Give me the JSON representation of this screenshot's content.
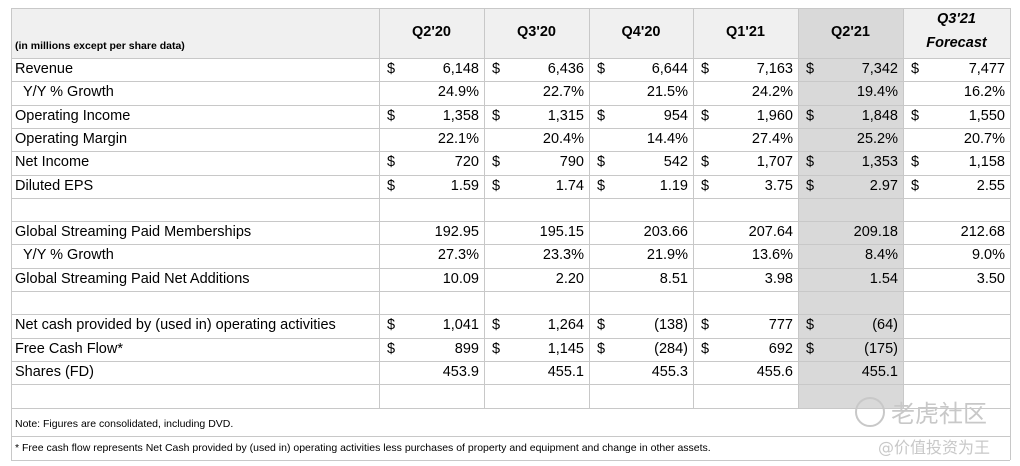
{
  "header": {
    "unit_note": "(in millions except per share data)",
    "columns": [
      "Q2'20",
      "Q3'20",
      "Q4'20",
      "Q1'21",
      "Q2'21"
    ],
    "forecast_col": [
      "Q3'21",
      "Forecast"
    ]
  },
  "rows": [
    {
      "label": "Revenue",
      "values": [
        "6,148",
        "6,436",
        "6,644",
        "7,163",
        "7,342",
        "7,477"
      ],
      "dollars": [
        true,
        true,
        true,
        true,
        true,
        true
      ]
    },
    {
      "label": "Y/Y % Growth",
      "indent": true,
      "values": [
        "24.9%",
        "22.7%",
        "21.5%",
        "24.2%",
        "19.4%",
        "16.2%"
      ],
      "dollars": [
        false,
        false,
        false,
        false,
        false,
        false
      ]
    },
    {
      "label": "Operating Income",
      "values": [
        "1,358",
        "1,315",
        "954",
        "1,960",
        "1,848",
        "1,550"
      ],
      "dollars": [
        true,
        true,
        true,
        true,
        true,
        true
      ]
    },
    {
      "label": "Operating Margin",
      "values": [
        "22.1%",
        "20.4%",
        "14.4%",
        "27.4%",
        "25.2%",
        "20.7%"
      ],
      "dollars": [
        false,
        false,
        false,
        false,
        false,
        false
      ]
    },
    {
      "label": "Net Income",
      "values": [
        "720",
        "790",
        "542",
        "1,707",
        "1,353",
        "1,158"
      ],
      "dollars": [
        true,
        true,
        true,
        true,
        true,
        true
      ]
    },
    {
      "label": "Diluted EPS",
      "values": [
        "1.59",
        "1.74",
        "1.19",
        "3.75",
        "2.97",
        "2.55"
      ],
      "dollars": [
        true,
        true,
        true,
        true,
        true,
        true
      ]
    },
    {
      "label": "",
      "values": [
        "",
        "",
        "",
        "",
        "",
        ""
      ],
      "dollars": [
        false,
        false,
        false,
        false,
        false,
        false
      ]
    },
    {
      "label": "Global Streaming Paid Memberships",
      "values": [
        "192.95",
        "195.15",
        "203.66",
        "207.64",
        "209.18",
        "212.68"
      ],
      "dollars": [
        false,
        false,
        false,
        false,
        false,
        false
      ]
    },
    {
      "label": "Y/Y % Growth",
      "indent": true,
      "values": [
        "27.3%",
        "23.3%",
        "21.9%",
        "13.6%",
        "8.4%",
        "9.0%"
      ],
      "dollars": [
        false,
        false,
        false,
        false,
        false,
        false
      ]
    },
    {
      "label": "Global Streaming Paid Net Additions",
      "values": [
        "10.09",
        "2.20",
        "8.51",
        "3.98",
        "1.54",
        "3.50"
      ],
      "dollars": [
        false,
        false,
        false,
        false,
        false,
        false
      ]
    },
    {
      "label": "",
      "values": [
        "",
        "",
        "",
        "",
        "",
        ""
      ],
      "dollars": [
        false,
        false,
        false,
        false,
        false,
        false
      ]
    },
    {
      "label": "Net cash provided by (used in) operating activities",
      "values": [
        "1,041",
        "1,264",
        "(138)",
        "777",
        "(64)",
        ""
      ],
      "dollars": [
        true,
        true,
        true,
        true,
        true,
        false
      ]
    },
    {
      "label": "Free Cash Flow*",
      "values": [
        "899",
        "1,145",
        "(284)",
        "692",
        "(175)",
        ""
      ],
      "dollars": [
        true,
        true,
        true,
        true,
        true,
        false
      ]
    },
    {
      "label": "Shares (FD)",
      "values": [
        "453.9",
        "455.1",
        "455.3",
        "455.6",
        "455.1",
        ""
      ],
      "dollars": [
        false,
        false,
        false,
        false,
        false,
        false
      ]
    },
    {
      "label": "",
      "values": [
        "",
        "",
        "",
        "",
        "",
        ""
      ],
      "dollars": [
        false,
        false,
        false,
        false,
        false,
        false
      ]
    }
  ],
  "currency_symbol": "$",
  "notes": {
    "consolidated": "Note: Figures are consolidated, including DVD.",
    "fcf": "* Free cash flow represents Net Cash provided by (used in) operating activities less purchases of property and equipment and change in other assets."
  },
  "watermark": {
    "brand": "老虎社区",
    "handle": "@价值投资为王"
  },
  "colors": {
    "highlight_column": "#d9d9d9",
    "grid": "#c8c8c8"
  }
}
